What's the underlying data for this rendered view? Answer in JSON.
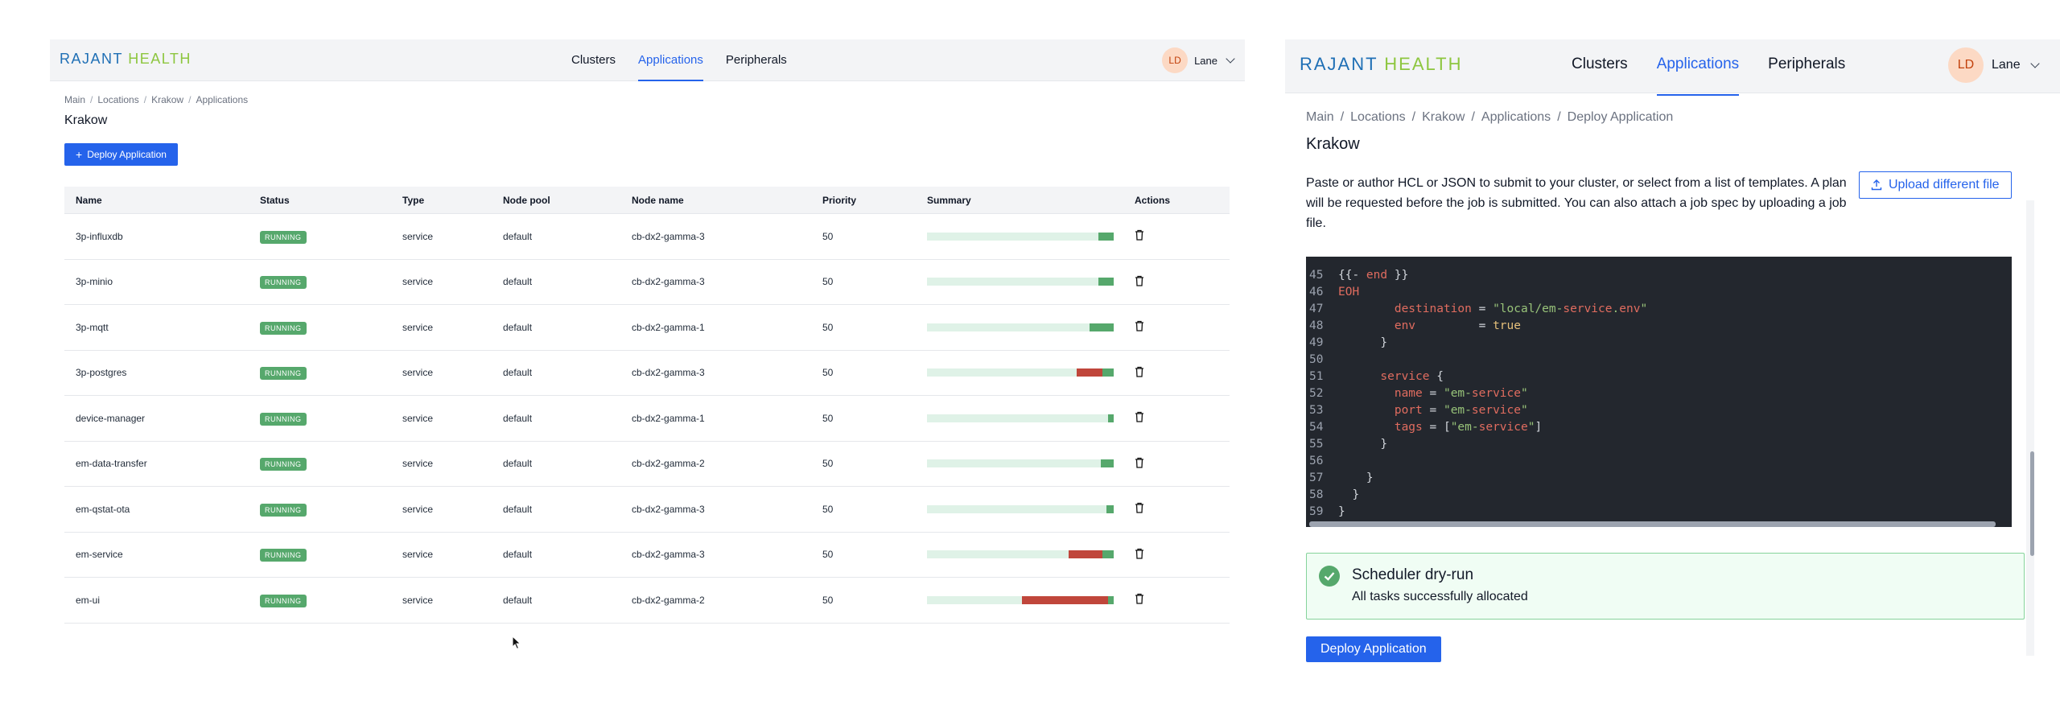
{
  "brand": {
    "part1": "RAJANT",
    "part2": "HEALTH"
  },
  "nav": {
    "links": [
      "Clusters",
      "Applications",
      "Peripherals"
    ],
    "active": "Applications"
  },
  "user": {
    "initials": "LD",
    "name": "Lane"
  },
  "left": {
    "breadcrumb": [
      "Main",
      "Locations",
      "Krakow",
      "Applications"
    ],
    "title": "Krakow",
    "deploy_label": "Deploy Application",
    "columns": [
      "Name",
      "Status",
      "Type",
      "Node pool",
      "Node name",
      "Priority",
      "Summary",
      "Actions"
    ],
    "rows": [
      {
        "name": "3p-influxdb",
        "status": "RUNNING",
        "type": "service",
        "pool": "default",
        "node": "cb-dx2-gamma-3",
        "priority": "50",
        "summary": {
          "failed": 0,
          "running": 0.08
        }
      },
      {
        "name": "3p-minio",
        "status": "RUNNING",
        "type": "service",
        "pool": "default",
        "node": "cb-dx2-gamma-3",
        "priority": "50",
        "summary": {
          "failed": 0,
          "running": 0.08
        }
      },
      {
        "name": "3p-mqtt",
        "status": "RUNNING",
        "type": "service",
        "pool": "default",
        "node": "cb-dx2-gamma-1",
        "priority": "50",
        "summary": {
          "failed": 0,
          "running": 0.13
        }
      },
      {
        "name": "3p-postgres",
        "status": "RUNNING",
        "type": "service",
        "pool": "default",
        "node": "cb-dx2-gamma-3",
        "priority": "50",
        "summary": {
          "failed": 0.14,
          "running": 0.06
        }
      },
      {
        "name": "device-manager",
        "status": "RUNNING",
        "type": "service",
        "pool": "default",
        "node": "cb-dx2-gamma-1",
        "priority": "50",
        "summary": {
          "failed": 0,
          "running": 0.03
        }
      },
      {
        "name": "em-data-transfer",
        "status": "RUNNING",
        "type": "service",
        "pool": "default",
        "node": "cb-dx2-gamma-2",
        "priority": "50",
        "summary": {
          "failed": 0,
          "running": 0.07
        }
      },
      {
        "name": "em-qstat-ota",
        "status": "RUNNING",
        "type": "service",
        "pool": "default",
        "node": "cb-dx2-gamma-3",
        "priority": "50",
        "summary": {
          "failed": 0,
          "running": 0.04
        }
      },
      {
        "name": "em-service",
        "status": "RUNNING",
        "type": "service",
        "pool": "default",
        "node": "cb-dx2-gamma-3",
        "priority": "50",
        "summary": {
          "failed": 0.18,
          "running": 0.06
        }
      },
      {
        "name": "em-ui",
        "status": "RUNNING",
        "type": "service",
        "pool": "default",
        "node": "cb-dx2-gamma-2",
        "priority": "50",
        "summary": {
          "failed": 0.46,
          "running": 0.03
        }
      }
    ]
  },
  "right": {
    "breadcrumb": [
      "Main",
      "Locations",
      "Krakow",
      "Applications",
      "Deploy Application"
    ],
    "title": "Krakow",
    "description": "Paste or author HCL or JSON to submit to your cluster, or select from a list of templates. A plan will be requested before the job is submitted. You can also attach a job spec by uploading a job file.",
    "upload_label": "Upload different file",
    "code_lines": [
      {
        "n": "45",
        "code": "{{- end }}"
      },
      {
        "n": "46",
        "code": "EOH"
      },
      {
        "n": "47",
        "code": "        destination = \"local/em-service.env\""
      },
      {
        "n": "48",
        "code": "        env         = true"
      },
      {
        "n": "49",
        "code": "      }"
      },
      {
        "n": "50",
        "code": ""
      },
      {
        "n": "51",
        "code": "      service {"
      },
      {
        "n": "52",
        "code": "        name = \"em-service\""
      },
      {
        "n": "53",
        "code": "        port = \"em-service\""
      },
      {
        "n": "54",
        "code": "        tags = [\"em-service\"]"
      },
      {
        "n": "55",
        "code": "      }"
      },
      {
        "n": "56",
        "code": ""
      },
      {
        "n": "57",
        "code": "    }"
      },
      {
        "n": "58",
        "code": "  }"
      },
      {
        "n": "59",
        "code": "}"
      }
    ],
    "dryrun": {
      "title": "Scheduler dry-run",
      "subtitle": "All tasks successfully allocated"
    },
    "deploy_label": "Deploy Application"
  },
  "colors": {
    "accent": "#2563eb",
    "running": "#56a86c",
    "failed": "#c0463b",
    "editor_bg": "#23272e"
  }
}
